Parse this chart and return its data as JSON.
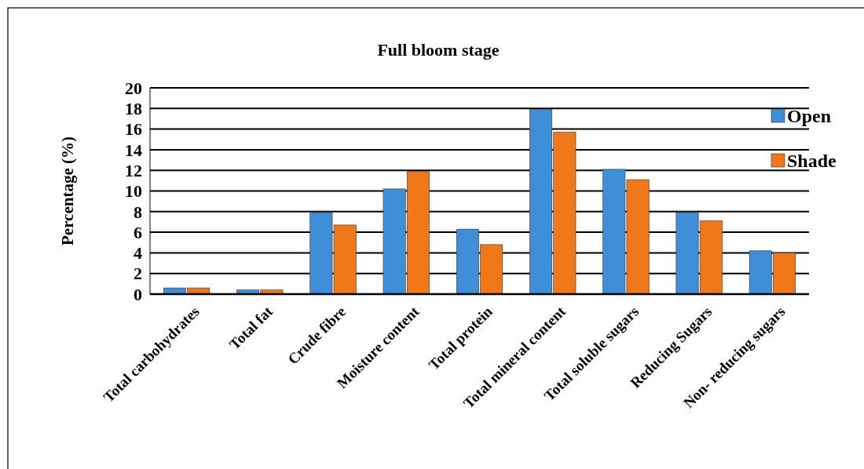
{
  "chart_data": {
    "type": "bar",
    "title": "Full bloom stage",
    "ylabel": "Percentage (%)",
    "categories": [
      "Total carbohydrates",
      "Total fat",
      "Crude fibre",
      "Moisture content",
      "Total protein",
      "Total mineral content",
      "Total soluble sugars",
      "Reducing Sugars",
      "Non- reducing sugars"
    ],
    "series": [
      {
        "name": "Open",
        "color": "#3f8fd8",
        "values": [
          0.6,
          0.4,
          7.9,
          10.2,
          6.3,
          17.9,
          12.1,
          7.9,
          4.2
        ]
      },
      {
        "name": "Shade",
        "color": "#f07818",
        "values": [
          0.6,
          0.4,
          6.7,
          11.9,
          4.8,
          15.7,
          11.1,
          7.1,
          4.0
        ]
      }
    ],
    "ylim": [
      0,
      20
    ],
    "yticks": [
      0,
      2,
      4,
      6,
      8,
      10,
      12,
      14,
      16,
      18,
      20
    ],
    "grid": "y",
    "legend": "top right"
  }
}
